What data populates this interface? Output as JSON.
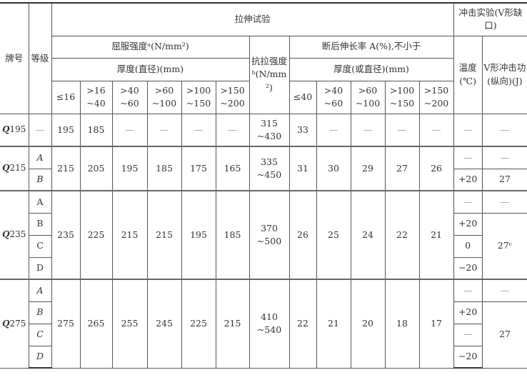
{
  "header": {
    "grade_brand": "牌号",
    "quality_level": "等级",
    "tensile_test": "拉伸试验",
    "impact_test": "冲击实验(V形缺口)",
    "yield_strength": "屈服强度ᵃ(N/mm²)",
    "yield_thickness": "厚度(直径)(mm)",
    "tensile_strength": "抗拉强度ᵇ(N/mm²)",
    "elongation": "断后伸长率 A(%),不小于",
    "elong_thickness": "厚度(或直径)(mm)",
    "temperature": "温度(℃)",
    "impact_energy": "V形冲击功(纵向)(J)",
    "yield_ranges": [
      "≤16",
      ">16~40",
      ">40~60",
      ">60~100",
      ">100~150",
      ">150~200"
    ],
    "elong_ranges": [
      "≤40",
      ">40~60",
      ">60~100",
      ">100~150",
      ">150~200"
    ]
  },
  "rows": [
    {
      "brand": "Q195",
      "yield": [
        "195",
        "185",
        "—",
        "—",
        "—",
        "—"
      ],
      "tensile": "315~430",
      "elong": [
        "33",
        "—",
        "—",
        "—",
        "—"
      ],
      "sub": [
        {
          "grade": "—",
          "temp": "—",
          "energy": "—"
        }
      ]
    },
    {
      "brand": "Q215",
      "yield": [
        "215",
        "205",
        "195",
        "185",
        "175",
        "165"
      ],
      "tensile": "335~450",
      "elong": [
        "31",
        "30",
        "29",
        "27",
        "26"
      ],
      "sub": [
        {
          "grade": "A",
          "temp": "—",
          "energy": "—"
        },
        {
          "grade": "B",
          "temp": "+20",
          "energy": "27"
        }
      ]
    },
    {
      "brand": "Q235",
      "yield": [
        "235",
        "225",
        "215",
        "215",
        "195",
        "185"
      ],
      "tensile": "370~500",
      "elong": [
        "26",
        "25",
        "24",
        "22",
        "21"
      ],
      "sub": [
        {
          "grade": "A",
          "temp": "—",
          "energy": "—"
        },
        {
          "grade": "B",
          "temp": "+20",
          "energy": "27ᶜ"
        },
        {
          "grade": "C",
          "temp": "0",
          "energy": null
        },
        {
          "grade": "D",
          "temp": "−20",
          "energy": null
        }
      ]
    },
    {
      "brand": "Q275",
      "yield": [
        "275",
        "265",
        "255",
        "245",
        "225",
        "215"
      ],
      "tensile": "410~540",
      "elong": [
        "22",
        "21",
        "20",
        "18",
        "17"
      ],
      "sub": [
        {
          "grade": "A",
          "temp": "—",
          "energy": "—"
        },
        {
          "grade": "B",
          "temp": "+20",
          "energy": "27"
        },
        {
          "grade": "C",
          "temp": "—",
          "energy": null
        },
        {
          "grade": "D",
          "temp": "−20",
          "energy": null
        }
      ]
    }
  ]
}
